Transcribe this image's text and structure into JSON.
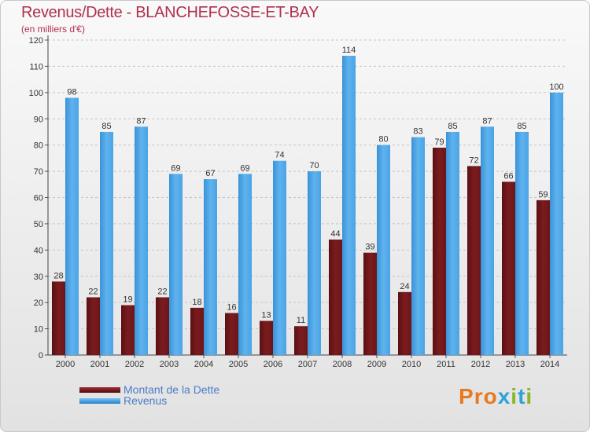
{
  "title": "Revenus/Dette - BLANCHEFOSSE-ET-BAY",
  "subtitle": "(en milliers d'€)",
  "colors": {
    "title": "#b0304e",
    "dette": "#7b1c1f",
    "revenus": "#4aa3e6",
    "legend_text": "#4a7cc9"
  },
  "chart_data": {
    "type": "bar",
    "title": "Revenus/Dette - BLANCHEFOSSE-ET-BAY",
    "ylabel": "(en milliers d'€)",
    "xlabel": "",
    "ylim": [
      0,
      120
    ],
    "yticks": [
      0,
      10,
      20,
      30,
      40,
      50,
      60,
      70,
      80,
      90,
      100,
      110,
      120
    ],
    "grid": true,
    "categories": [
      "2000",
      "2001",
      "2002",
      "2003",
      "2004",
      "2005",
      "2006",
      "2007",
      "2008",
      "2009",
      "2010",
      "2011",
      "2012",
      "2013",
      "2014"
    ],
    "series": [
      {
        "name": "Montant de la Dette",
        "values": [
          28,
          22,
          19,
          22,
          18,
          16,
          13,
          11,
          44,
          39,
          24,
          79,
          72,
          66,
          59
        ]
      },
      {
        "name": "Revenus",
        "values": [
          98,
          85,
          87,
          69,
          67,
          69,
          74,
          70,
          114,
          80,
          83,
          85,
          87,
          85,
          100
        ]
      }
    ]
  },
  "legend": [
    {
      "label": "Montant de la Dette",
      "color": "#7b1c1f"
    },
    {
      "label": "Revenus",
      "color": "#4aa3e6"
    }
  ],
  "logo": {
    "text": "Proxiti"
  }
}
